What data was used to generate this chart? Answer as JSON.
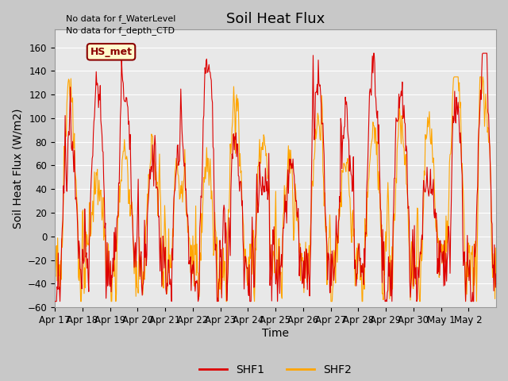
{
  "title": "Soil Heat Flux",
  "ylabel": "Soil Heat Flux (W/m2)",
  "xlabel": "Time",
  "ylim": [
    -60,
    175
  ],
  "yticks": [
    -60,
    -40,
    -20,
    0,
    20,
    40,
    60,
    80,
    100,
    120,
    140,
    160
  ],
  "shf1_color": "#DD0000",
  "shf2_color": "#FFA500",
  "fig_bg_color": "#C8C8C8",
  "plot_bg_color": "#E8E8E8",
  "xtick_labels": [
    "Apr 17",
    "Apr 18",
    "Apr 19",
    "Apr 20",
    "Apr 21",
    "Apr 22",
    "Apr 23",
    "Apr 24",
    "Apr 25",
    "Apr 26",
    "Apr 27",
    "Apr 28",
    "Apr 29",
    "Apr 30",
    "May 1",
    "May 2"
  ],
  "annotation_text1": "No data for f_WaterLevel",
  "annotation_text2": "No data for f_depth_CTD",
  "hs_met_label": "HS_met",
  "legend_labels": [
    "SHF1",
    "SHF2"
  ],
  "n_days": 16,
  "points_per_day": 48,
  "title_fontsize": 13,
  "tick_fontsize": 8.5,
  "label_fontsize": 10
}
